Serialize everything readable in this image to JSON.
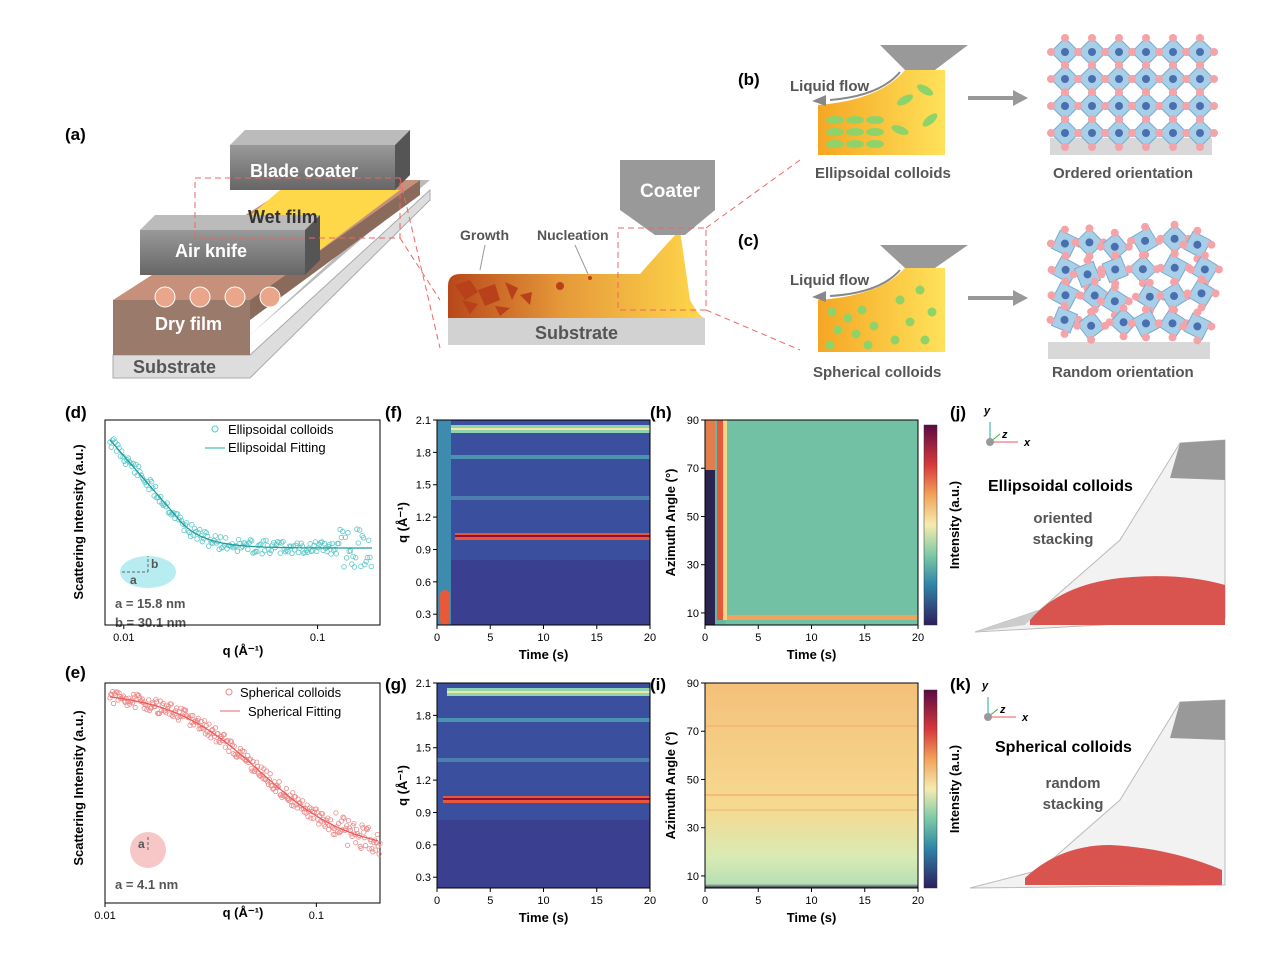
{
  "panel_labels": [
    "(a)",
    "(b)",
    "(c)",
    "(d)",
    "(e)",
    "(f)",
    "(g)",
    "(h)",
    "(i)",
    "(j)",
    "(k)"
  ],
  "schematic_a": {
    "blade": "Blade coater",
    "wet": "Wet film",
    "air": "Air knife",
    "dry": "Dry film",
    "substrate": "Substrate"
  },
  "schematic_mid": {
    "coater": "Coater",
    "growth": "Growth",
    "nucleation": "Nucleation",
    "substrate": "Substrate"
  },
  "panel_b": {
    "flow": "Liquid flow",
    "colloid": "Ellipsoidal colloids",
    "orientation": "Ordered orientation"
  },
  "panel_c": {
    "flow": "Liquid flow",
    "colloid": "Spherical colloids",
    "orientation": "Random orientation"
  },
  "panel_d": {
    "ylabel": "Scattering Intensity (a.u.)",
    "xlabel": "q (Å⁻¹)",
    "legend": [
      "Ellipsoidal colloids",
      "Ellipsoidal Fitting"
    ],
    "xlim": [
      0.008,
      0.21
    ],
    "xticks": [
      0.01,
      0.1
    ],
    "log_x": true,
    "axis_letters": [
      "a",
      "b"
    ],
    "annotations": [
      "a = 15.8 nm",
      "b = 30.1 nm"
    ]
  },
  "panel_e": {
    "ylabel": "Scattering Intensity (a.u.)",
    "xlabel": "q (Å⁻¹)",
    "legend": [
      "Spherical colloids",
      "Spherical Fitting"
    ],
    "xlim": [
      0.01,
      0.2
    ],
    "xticks": [
      0.01,
      0.1
    ],
    "log_x": true,
    "axis_letters": [
      "a"
    ],
    "annotations": [
      "a = 4.1 nm"
    ]
  },
  "panel_f": {
    "ylabel": "q (Å⁻¹)",
    "xlabel": "Time (s)",
    "ylim": [
      0.2,
      2.1
    ],
    "yticks": [
      0.3,
      0.6,
      0.9,
      1.2,
      1.5,
      1.8,
      2.1
    ],
    "xlim": [
      0,
      20
    ],
    "xticks": [
      0,
      5,
      10,
      15,
      20
    ]
  },
  "panel_g": {
    "ylabel": "q (Å⁻¹)",
    "xlabel": "Time (s)",
    "ylim": [
      0.2,
      2.1
    ],
    "yticks": [
      0.3,
      0.6,
      0.9,
      1.2,
      1.5,
      1.8,
      2.1
    ],
    "xlim": [
      0,
      20
    ],
    "xticks": [
      0,
      5,
      10,
      15,
      20
    ]
  },
  "panel_h": {
    "ylabel": "Azimuth Angle (°)",
    "xlabel": "Time (s)",
    "colorbar": "Intensity (a.u.)",
    "ylim": [
      5,
      90
    ],
    "yticks": [
      10,
      30,
      50,
      70,
      90
    ],
    "xlim": [
      0,
      20
    ],
    "xticks": [
      0,
      5,
      10,
      15,
      20
    ]
  },
  "panel_i": {
    "ylabel": "Azimuth Angle (°)",
    "xlabel": "Time (s)",
    "colorbar": "Intensity (a.u.)",
    "ylim": [
      5,
      90
    ],
    "yticks": [
      10,
      30,
      50,
      70,
      90
    ],
    "xlim": [
      0,
      20
    ],
    "xticks": [
      0,
      5,
      10,
      15,
      20
    ]
  },
  "panel_j": {
    "axes": [
      "y",
      "z",
      "x"
    ],
    "title": "Ellipsoidal colloids",
    "note": [
      "oriented",
      "stacking"
    ]
  },
  "panel_k": {
    "axes": [
      "y",
      "z",
      "x"
    ],
    "title": "Spherical colloids",
    "note": [
      "random",
      "stacking"
    ]
  }
}
